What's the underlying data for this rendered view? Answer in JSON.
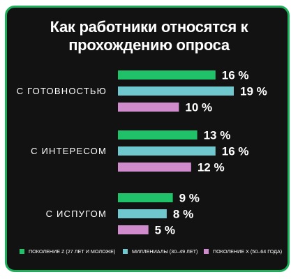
{
  "colors": {
    "background": "#121212",
    "border": "#1db05a",
    "series": [
      "#1fc268",
      "#6fc8cd",
      "#cf8bcc"
    ]
  },
  "chart_data": {
    "type": "bar",
    "orientation": "horizontal",
    "title_lines": [
      "Как работники относятся к",
      "прохождению опроса"
    ],
    "categories": [
      "С ГОТОВНОСТЬЮ",
      "С ИНТЕРЕСОМ",
      "С ИСПУГОМ"
    ],
    "series": [
      {
        "name": "ПОКОЛЕНИЕ Z (27 ЛЕТ И МОЛОЖЕ)",
        "values": [
          16,
          13,
          9
        ]
      },
      {
        "name": "МИЛЛЕНИАЛЫ (30–49 ЛЕТ)",
        "values": [
          19,
          16,
          8
        ]
      },
      {
        "name": "ПОКОЛЕНИЕ X (50–64 ГОДА)",
        "values": [
          10,
          12,
          5
        ]
      }
    ],
    "value_labels": [
      [
        "16 %",
        "19 %",
        "10 %"
      ],
      [
        "13 %",
        "16 %",
        "12 %"
      ],
      [
        "9 %",
        "8 %",
        "5 %"
      ]
    ],
    "xlim": [
      0,
      19
    ],
    "grid": false,
    "axes_visible": false,
    "legend_position": "bottom"
  }
}
